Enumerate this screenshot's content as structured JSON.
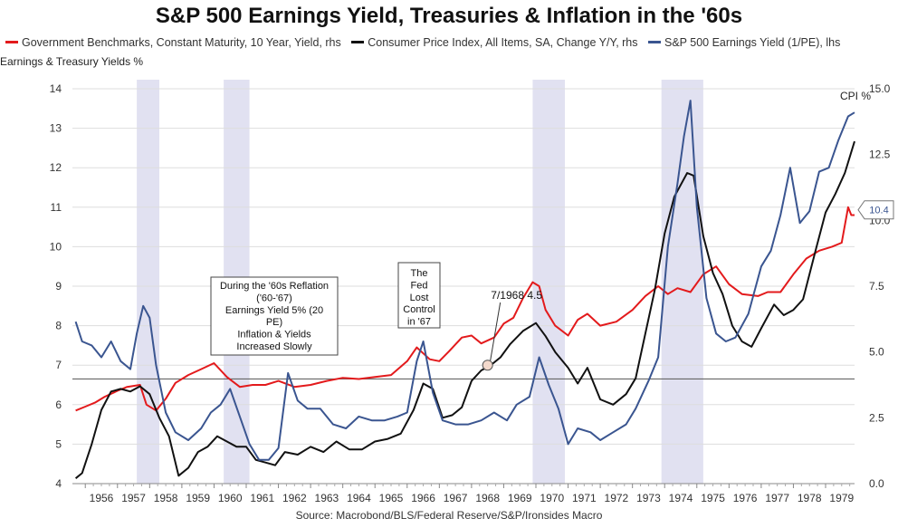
{
  "chart_data": {
    "type": "line",
    "title": "S&P 500 Earnings Yield, Treasuries & Inflation in the '60s",
    "ylabel": "Earnings & Treasury Yields %",
    "y2label": "CPI %",
    "ylim": [
      4,
      14
    ],
    "y2lim": [
      0,
      15
    ],
    "xlim": [
      1955.6,
      1979.9
    ],
    "yticks": [
      "4",
      "5",
      "6",
      "7",
      "8",
      "9",
      "10",
      "11",
      "12",
      "13",
      "14"
    ],
    "y2ticks": [
      "0.0",
      "2.5",
      "5.0",
      "7.5",
      "10.0",
      "12.5",
      "15.0"
    ],
    "xticks": [
      "1956",
      "1957",
      "1958",
      "1959",
      "1960",
      "1961",
      "1962",
      "1963",
      "1964",
      "1965",
      "1966",
      "1967",
      "1968",
      "1969",
      "1970",
      "1971",
      "1972",
      "1973",
      "1974",
      "1975",
      "1976",
      "1977",
      "1978",
      "1979"
    ],
    "grid": true,
    "legend_position": "top",
    "recessions": [
      [
        1957.6,
        1958.3
      ],
      [
        1960.3,
        1961.1
      ],
      [
        1969.9,
        1970.9
      ],
      [
        1973.9,
        1975.2
      ]
    ],
    "reference_line": 6.65,
    "series": [
      {
        "name": "Government Benchmarks, Constant Maturity, 10 Year, Yield, rhs",
        "color": "#e31a1c",
        "axis": "left",
        "x": [
          1955.7,
          1956.0,
          1956.3,
          1956.6,
          1957.0,
          1957.3,
          1957.7,
          1957.9,
          1958.2,
          1958.5,
          1958.8,
          1959.2,
          1959.6,
          1960.0,
          1960.4,
          1960.8,
          1961.2,
          1961.6,
          1962.0,
          1962.5,
          1963.0,
          1963.5,
          1964.0,
          1964.5,
          1965.0,
          1965.5,
          1966.0,
          1966.3,
          1966.7,
          1967.0,
          1967.3,
          1967.7,
          1968.0,
          1968.3,
          1968.7,
          1969.0,
          1969.3,
          1969.6,
          1969.9,
          1970.1,
          1970.3,
          1970.6,
          1971.0,
          1971.3,
          1971.6,
          1972.0,
          1972.5,
          1973.0,
          1973.4,
          1973.8,
          1974.1,
          1974.4,
          1974.8,
          1975.2,
          1975.6,
          1976.0,
          1976.4,
          1976.9,
          1977.2,
          1977.6,
          1978.0,
          1978.4,
          1978.8,
          1979.2,
          1979.5,
          1979.7,
          1979.8,
          1979.9
        ],
        "y": [
          5.85,
          5.95,
          6.05,
          6.2,
          6.35,
          6.45,
          6.5,
          6.0,
          5.85,
          6.15,
          6.55,
          6.75,
          6.9,
          7.05,
          6.7,
          6.45,
          6.5,
          6.5,
          6.6,
          6.45,
          6.5,
          6.6,
          6.68,
          6.65,
          6.7,
          6.75,
          7.1,
          7.45,
          7.15,
          7.1,
          7.35,
          7.7,
          7.75,
          7.55,
          7.7,
          8.05,
          8.2,
          8.7,
          9.1,
          9.0,
          8.4,
          8.0,
          7.75,
          8.15,
          8.3,
          8.0,
          8.1,
          8.4,
          8.75,
          9.0,
          8.8,
          8.95,
          8.85,
          9.3,
          9.5,
          9.05,
          8.8,
          8.75,
          8.85,
          8.85,
          9.3,
          9.7,
          9.9,
          10.0,
          10.1,
          11.0,
          10.8,
          10.8
        ]
      },
      {
        "name": "Consumer Price Index, All Items, SA, Change Y/Y, rhs",
        "color": "#111111",
        "axis": "right",
        "x": [
          1955.7,
          1955.9,
          1956.2,
          1956.5,
          1956.8,
          1957.1,
          1957.4,
          1957.7,
          1958.0,
          1958.3,
          1958.6,
          1958.9,
          1959.2,
          1959.5,
          1959.8,
          1960.1,
          1960.4,
          1960.7,
          1961.0,
          1961.3,
          1961.6,
          1961.9,
          1962.2,
          1962.6,
          1963.0,
          1963.4,
          1963.8,
          1964.2,
          1964.6,
          1965.0,
          1965.4,
          1965.8,
          1966.2,
          1966.5,
          1966.8,
          1967.1,
          1967.4,
          1967.7,
          1968.0,
          1968.3,
          1968.6,
          1968.9,
          1969.2,
          1969.6,
          1970.0,
          1970.3,
          1970.6,
          1971.0,
          1971.3,
          1971.6,
          1972.0,
          1972.4,
          1972.8,
          1973.1,
          1973.4,
          1973.7,
          1974.0,
          1974.3,
          1974.7,
          1974.9,
          1975.2,
          1975.5,
          1975.8,
          1976.1,
          1976.4,
          1976.7,
          1977.0,
          1977.4,
          1977.7,
          1978.0,
          1978.3,
          1978.7,
          1979.0,
          1979.3,
          1979.6,
          1979.9
        ],
        "y": [
          0.2,
          0.4,
          1.5,
          2.8,
          3.5,
          3.6,
          3.5,
          3.7,
          3.4,
          2.5,
          1.8,
          0.3,
          0.6,
          1.2,
          1.4,
          1.8,
          1.6,
          1.4,
          1.4,
          0.9,
          0.8,
          0.7,
          1.2,
          1.1,
          1.4,
          1.2,
          1.6,
          1.3,
          1.3,
          1.6,
          1.7,
          1.9,
          2.8,
          3.8,
          3.6,
          2.5,
          2.6,
          2.9,
          3.9,
          4.3,
          4.5,
          4.8,
          5.3,
          5.8,
          6.1,
          5.6,
          5.0,
          4.4,
          3.8,
          4.4,
          3.2,
          3.0,
          3.4,
          4.0,
          5.7,
          7.4,
          9.5,
          10.9,
          11.8,
          11.7,
          9.4,
          8.0,
          7.2,
          6.0,
          5.4,
          5.2,
          5.9,
          6.8,
          6.4,
          6.6,
          7.0,
          8.9,
          10.3,
          11.0,
          11.8,
          13.0
        ]
      },
      {
        "name": "S&P 500 Earnings Yield (1/PE), lhs",
        "color": "#3a5590",
        "axis": "left",
        "x": [
          1955.7,
          1955.9,
          1956.2,
          1956.5,
          1956.8,
          1957.1,
          1957.4,
          1957.6,
          1957.8,
          1958.0,
          1958.2,
          1958.5,
          1958.8,
          1959.2,
          1959.6,
          1959.9,
          1960.2,
          1960.5,
          1960.8,
          1961.1,
          1961.4,
          1961.7,
          1962.0,
          1962.3,
          1962.6,
          1962.9,
          1963.3,
          1963.7,
          1964.1,
          1964.5,
          1964.9,
          1965.3,
          1965.7,
          1966.0,
          1966.3,
          1966.5,
          1966.8,
          1967.1,
          1967.5,
          1967.9,
          1968.3,
          1968.7,
          1969.1,
          1969.4,
          1969.8,
          1970.1,
          1970.4,
          1970.7,
          1971.0,
          1971.3,
          1971.7,
          1972.0,
          1972.4,
          1972.8,
          1973.1,
          1973.5,
          1973.8,
          1974.1,
          1974.4,
          1974.6,
          1974.8,
          1975.0,
          1975.3,
          1975.6,
          1975.9,
          1976.2,
          1976.6,
          1977.0,
          1977.3,
          1977.6,
          1977.9,
          1978.2,
          1978.5,
          1978.8,
          1979.1,
          1979.4,
          1979.7,
          1979.9
        ],
        "y": [
          8.1,
          7.6,
          7.5,
          7.2,
          7.6,
          7.1,
          6.9,
          7.8,
          8.5,
          8.2,
          7.0,
          5.8,
          5.3,
          5.1,
          5.4,
          5.8,
          6.0,
          6.4,
          5.7,
          5.0,
          4.6,
          4.6,
          4.9,
          6.8,
          6.1,
          5.9,
          5.9,
          5.5,
          5.4,
          5.7,
          5.6,
          5.6,
          5.7,
          5.8,
          7.1,
          7.6,
          6.3,
          5.6,
          5.5,
          5.5,
          5.6,
          5.8,
          5.6,
          6.0,
          6.2,
          7.2,
          6.5,
          5.9,
          5.0,
          5.4,
          5.3,
          5.1,
          5.3,
          5.5,
          5.9,
          6.6,
          7.2,
          10.0,
          11.6,
          12.8,
          13.7,
          11.0,
          8.7,
          7.8,
          7.6,
          7.7,
          8.3,
          9.5,
          9.9,
          10.8,
          12.0,
          10.6,
          10.9,
          11.9,
          12.0,
          12.7,
          13.3,
          13.4
        ]
      }
    ],
    "annotations": [
      {
        "text": "During the '60s Reflation ('60-'67) Earnings Yield 5% (20 PE) Inflation & Yields Increased Slowly",
        "lines": [
          "During the '60s Reflation",
          "('60-'67)",
          "Earnings Yield 5% (20",
          "PE)",
          "Inflation & Yields",
          "Increased Slowly"
        ]
      },
      {
        "text": "The Fed Lost Control in '67",
        "lines": [
          "The",
          "Fed",
          "Lost",
          "Control",
          "in '67"
        ]
      },
      {
        "text": "7/1968 4.5",
        "x": 1968.5,
        "y": 4.5,
        "axis": "right"
      },
      {
        "text": "10.4",
        "y": 10.4,
        "axis": "right"
      }
    ],
    "source": "Source: Macrobond/BLS/Federal Reserve/S&P/Ironsides Macro"
  }
}
